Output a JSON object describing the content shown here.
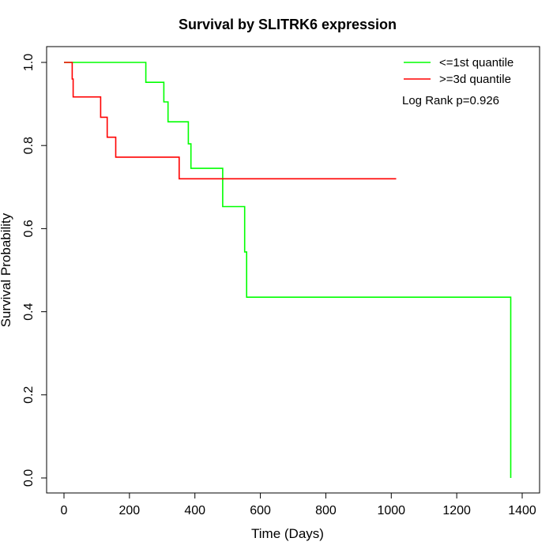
{
  "chart_data": {
    "type": "line",
    "title": "Survival by SLITRK6 expression",
    "xlabel": "Time (Days)",
    "ylabel": "Survival Probability",
    "xlim": [
      0,
      1400
    ],
    "ylim": [
      0,
      1.0
    ],
    "x_ticks": [
      0,
      200,
      400,
      600,
      800,
      1000,
      1200,
      1400
    ],
    "x_tick_labels": [
      "0",
      "200",
      "400",
      "600",
      "800",
      "1000",
      "1200",
      "1400"
    ],
    "y_ticks": [
      0.0,
      0.2,
      0.4,
      0.6,
      0.8,
      1.0
    ],
    "y_tick_labels": [
      "0.0",
      "0.2",
      "0.4",
      "0.6",
      "0.8",
      "1.0"
    ],
    "grid": false,
    "legend_position": "top-right",
    "annotation": "Log Rank p=0.926",
    "series": [
      {
        "name": "<=1st quantile",
        "color": "#00ff00",
        "step": true,
        "x": [
          0,
          250,
          305,
          318,
          380,
          388,
          485,
          552,
          558,
          1365,
          1365
        ],
        "y": [
          1.0,
          0.952,
          0.905,
          0.857,
          0.804,
          0.745,
          0.653,
          0.544,
          0.435,
          0.435,
          0.0
        ]
      },
      {
        "name": ">=3d quantile",
        "color": "#ff0000",
        "step": true,
        "x": [
          0,
          25,
          28,
          112,
          132,
          158,
          352,
          1015
        ],
        "y": [
          1.0,
          0.96,
          0.917,
          0.868,
          0.82,
          0.772,
          0.72,
          0.72
        ]
      }
    ]
  }
}
